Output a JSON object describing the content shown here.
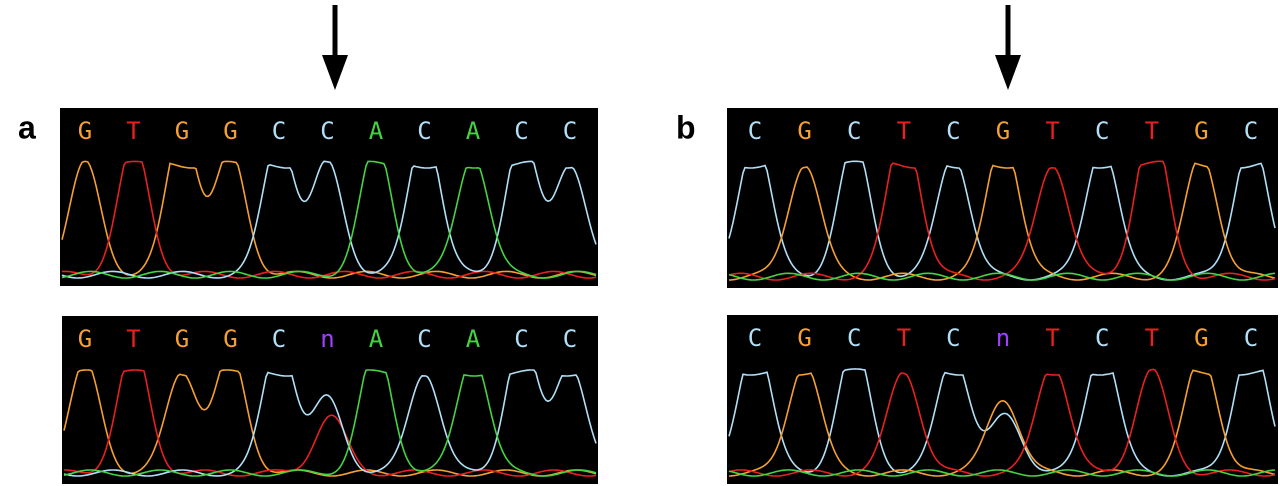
{
  "panels": [
    {
      "label": "a",
      "traces": [
        {
          "bases": [
            "G",
            "T",
            "G",
            "G",
            "C",
            "C",
            "A",
            "C",
            "A",
            "C",
            "C"
          ]
        },
        {
          "bases": [
            "G",
            "T",
            "G",
            "G",
            "C",
            "n",
            "A",
            "C",
            "A",
            "C",
            "C"
          ]
        }
      ]
    },
    {
      "label": "b",
      "traces": [
        {
          "bases": [
            "C",
            "G",
            "C",
            "T",
            "C",
            "G",
            "T",
            "C",
            "T",
            "G",
            "C"
          ]
        },
        {
          "bases": [
            "C",
            "G",
            "C",
            "T",
            "C",
            "n",
            "T",
            "C",
            "T",
            "G",
            "C"
          ]
        }
      ]
    }
  ],
  "base_colors": {
    "G": "#f5a030",
    "T": "#e82020",
    "C": "#b0e0f8",
    "A": "#44d444",
    "n": "#a040ff"
  }
}
